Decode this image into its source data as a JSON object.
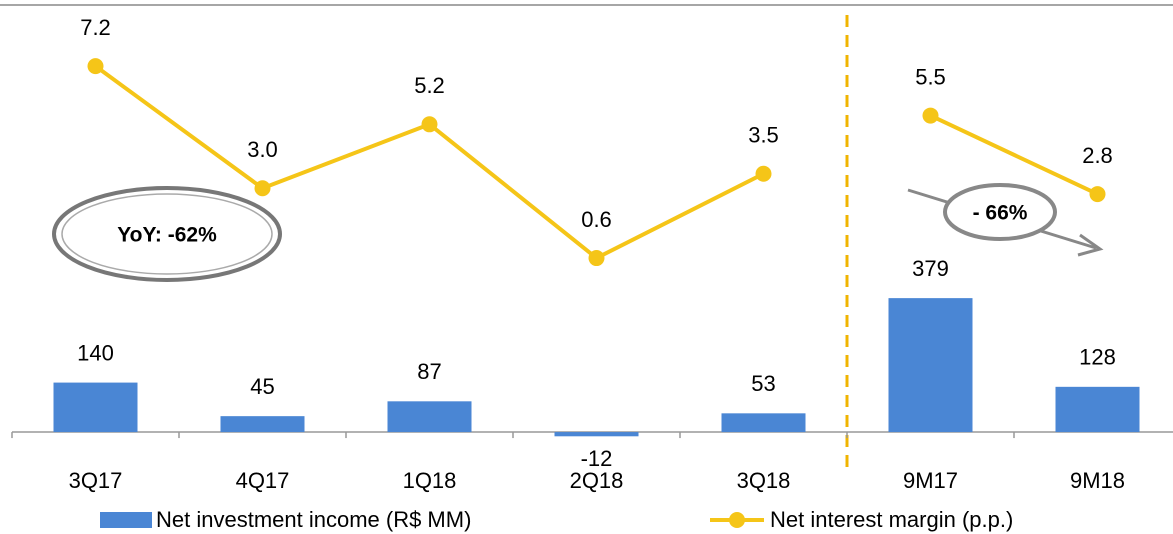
{
  "chart_data": {
    "type": "bar_line",
    "categories": [
      "3Q17",
      "4Q17",
      "1Q18",
      "2Q18",
      "3Q18",
      "9M17",
      "9M18"
    ],
    "series": [
      {
        "name": "Net investment income (R$ MM)",
        "type": "bar",
        "color": "#4a86d4",
        "values": [
          140,
          45,
          87,
          -12,
          53,
          379,
          128
        ]
      },
      {
        "name": "Net interest margin (p.p.)",
        "type": "line",
        "axis": "y2",
        "color": "#f5c518",
        "values": [
          7.2,
          3.0,
          5.2,
          0.6,
          3.5,
          5.5,
          2.8
        ],
        "value_labels": [
          "7.2",
          "3.0",
          "5.2",
          "0.6",
          "3.5",
          "5.5",
          "2.8"
        ]
      }
    ],
    "separator_index": 5,
    "annotations": [
      "YoY: -62%",
      "- 66%"
    ],
    "ylim": [
      -100,
      1200
    ],
    "y2lim": [
      -6.6,
      9.2
    ],
    "legend": "bottom"
  }
}
